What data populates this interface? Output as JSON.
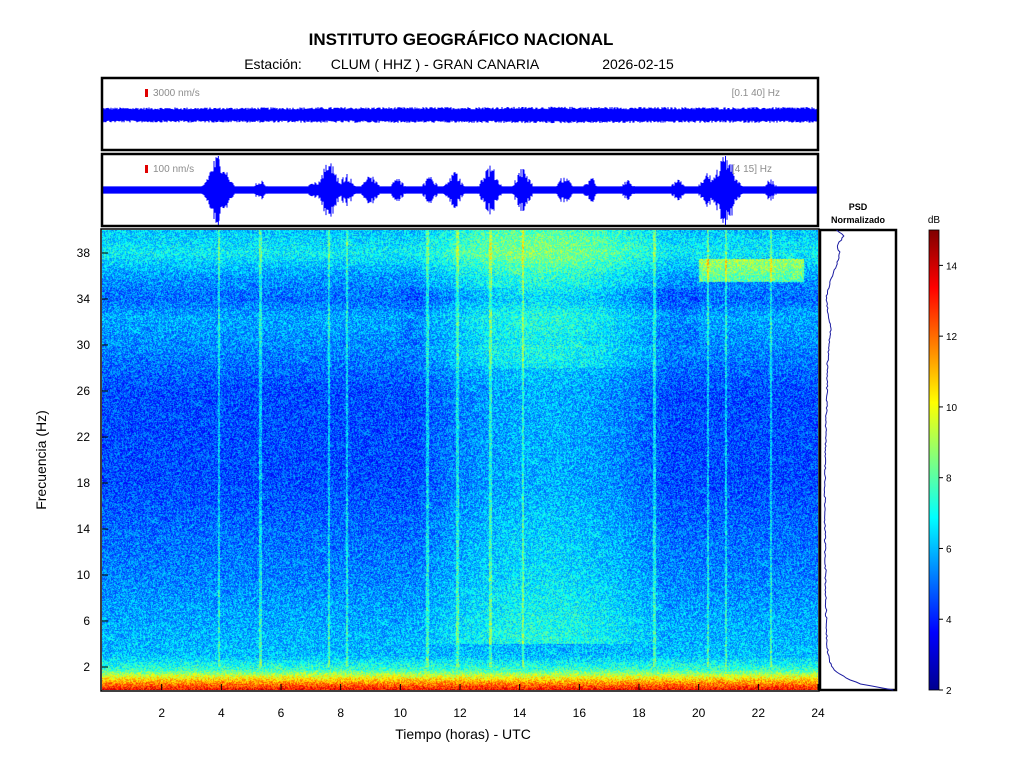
{
  "header": {
    "title": "INSTITUTO GEOGRÁFICO NACIONAL",
    "station_prefix": "Estación:",
    "station": "CLUM ( HHZ ) - GRAN CANARIA",
    "date": "2026-02-15"
  },
  "colors": {
    "trace": "#0000ff",
    "scale_marker": "#e00000",
    "annotation": "#8c8c8c"
  },
  "chart_data": [
    {
      "type": "line",
      "panel": "seismogram-broadband",
      "scale_label": "3000 nm/s",
      "filter_label": "[0.1 40] Hz",
      "xlim": [
        0,
        24
      ],
      "envelope": {
        "x": [
          0,
          2,
          4,
          6,
          8,
          10,
          12,
          14,
          16,
          18,
          20,
          22,
          24
        ],
        "amplitude": [
          0.55,
          0.55,
          0.55,
          0.56,
          0.57,
          0.57,
          0.58,
          0.6,
          0.6,
          0.58,
          0.57,
          0.57,
          0.58
        ]
      }
    },
    {
      "type": "line",
      "panel": "seismogram-filtered",
      "scale_label": "100 nm/s",
      "filter_label": "[4 15] Hz",
      "xlim": [
        0,
        24
      ],
      "background_amplitude": 0.1,
      "events": [
        {
          "t": 3.9,
          "amp": 1.0
        },
        {
          "t": 5.3,
          "amp": 0.3
        },
        {
          "t": 7.1,
          "amp": 0.25
        },
        {
          "t": 7.6,
          "amp": 0.8
        },
        {
          "t": 8.2,
          "amp": 0.45
        },
        {
          "t": 9.0,
          "amp": 0.45
        },
        {
          "t": 9.9,
          "amp": 0.35
        },
        {
          "t": 11.0,
          "amp": 0.4
        },
        {
          "t": 11.8,
          "amp": 0.55
        },
        {
          "t": 13.0,
          "amp": 0.7
        },
        {
          "t": 14.1,
          "amp": 0.6
        },
        {
          "t": 15.5,
          "amp": 0.4
        },
        {
          "t": 16.4,
          "amp": 0.35
        },
        {
          "t": 17.6,
          "amp": 0.3
        },
        {
          "t": 19.3,
          "amp": 0.3
        },
        {
          "t": 20.3,
          "amp": 0.5
        },
        {
          "t": 20.9,
          "amp": 1.0
        },
        {
          "t": 22.4,
          "amp": 0.3
        }
      ]
    },
    {
      "type": "heatmap",
      "panel": "spectrogram",
      "xlabel": "Tiempo (horas) - UTC",
      "ylabel": "Frecuencia  (Hz)",
      "xlim": [
        0,
        24
      ],
      "ylim": [
        0,
        40
      ],
      "xticks": [
        "2",
        "4",
        "6",
        "8",
        "10",
        "12",
        "14",
        "16",
        "18",
        "20",
        "22",
        "24"
      ],
      "yticks": [
        "2",
        "6",
        "10",
        "14",
        "18",
        "22",
        "26",
        "30",
        "34",
        "38"
      ],
      "clim": [
        2,
        15
      ],
      "colorbar_label": "dB",
      "colorbar_ticks": [
        "2",
        "4",
        "6",
        "8",
        "10",
        "12",
        "14"
      ],
      "base_profile": {
        "f": [
          0,
          1,
          1.8,
          3,
          6,
          10,
          14,
          18,
          22,
          26,
          30,
          32.5,
          34,
          36,
          38,
          40
        ],
        "db": [
          13.5,
          10.5,
          7.6,
          6.1,
          5.8,
          5.3,
          5.0,
          4.6,
          4.6,
          4.6,
          5.4,
          5.8,
          5.0,
          5.6,
          6.8,
          6.2
        ]
      },
      "daytime_noise": {
        "t_from": 10.5,
        "t_to": 19,
        "db": 1.3
      },
      "vertical_lines": [
        3.9,
        5.3,
        7.6,
        8.2,
        10.9,
        11.9,
        13.0,
        14.1,
        18.5,
        20.3,
        20.9,
        22.4
      ]
    },
    {
      "type": "line",
      "panel": "psd",
      "title": "PSD\nNormalizado",
      "ylim": [
        0,
        40
      ],
      "points": {
        "f": [
          0,
          0.5,
          1.0,
          1.5,
          2.0,
          3.0,
          4.0,
          6.0,
          8.0,
          10.0,
          14.0,
          18.0,
          22.0,
          24.0,
          26.0,
          28.0,
          30.0,
          31.5,
          33.0,
          34.0,
          35.0,
          36.0,
          37.0,
          38.0,
          38.5,
          39.5,
          40.0
        ],
        "v": [
          1.0,
          0.55,
          0.35,
          0.22,
          0.13,
          0.09,
          0.07,
          0.06,
          0.05,
          0.05,
          0.04,
          0.04,
          0.05,
          0.06,
          0.07,
          0.07,
          0.1,
          0.12,
          0.08,
          0.06,
          0.09,
          0.14,
          0.2,
          0.25,
          0.2,
          0.3,
          0.2
        ]
      }
    }
  ]
}
